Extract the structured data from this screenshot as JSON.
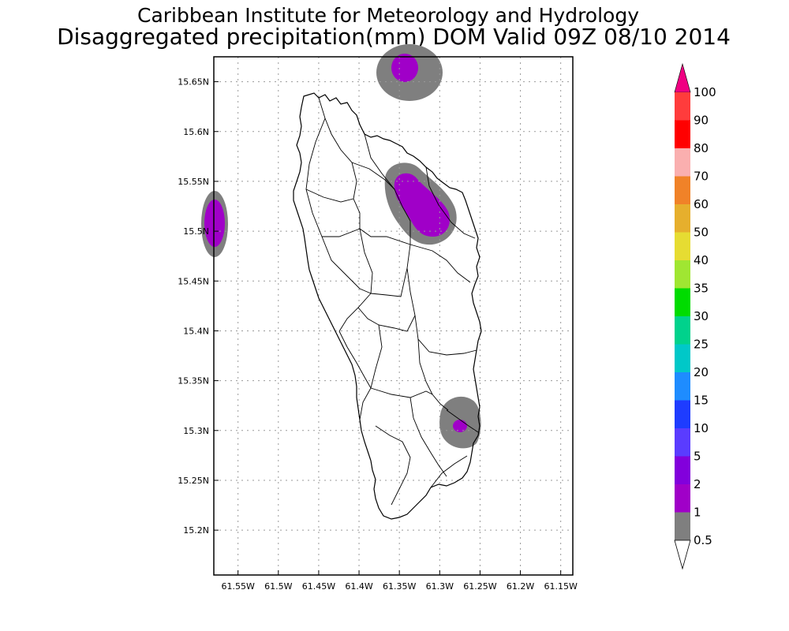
{
  "header": {
    "title": "Caribbean Institute for Meteorology and Hydrology",
    "subtitle": "Disaggregated precipitation(mm) DOM Valid 09Z 08/10 2014"
  },
  "map": {
    "lon_range": [
      -61.58,
      -61.135
    ],
    "lat_range": [
      15.155,
      15.675
    ],
    "lon_ticks": [
      {
        "value": -61.55,
        "label": "61.55W"
      },
      {
        "value": -61.5,
        "label": "61.5W"
      },
      {
        "value": -61.45,
        "label": "61.45W"
      },
      {
        "value": -61.4,
        "label": "61.4W"
      },
      {
        "value": -61.35,
        "label": "61.35W"
      },
      {
        "value": -61.3,
        "label": "61.3W"
      },
      {
        "value": -61.25,
        "label": "61.25W"
      },
      {
        "value": -61.2,
        "label": "61.2W"
      },
      {
        "value": -61.15,
        "label": "61.15W"
      }
    ],
    "lat_ticks": [
      {
        "value": 15.65,
        "label": "15.65N"
      },
      {
        "value": 15.6,
        "label": "15.6N"
      },
      {
        "value": 15.55,
        "label": "15.55N"
      },
      {
        "value": 15.5,
        "label": "15.5N"
      },
      {
        "value": 15.45,
        "label": "15.45N"
      },
      {
        "value": 15.4,
        "label": "15.4N"
      },
      {
        "value": 15.35,
        "label": "15.35N"
      },
      {
        "value": 15.3,
        "label": "15.3N"
      },
      {
        "value": 15.25,
        "label": "15.25N"
      },
      {
        "value": 15.2,
        "label": "15.2N"
      }
    ],
    "grid": true
  },
  "colorbar": {
    "levels": [
      "0.5",
      "1",
      "2",
      "5",
      "10",
      "15",
      "20",
      "25",
      "30",
      "35",
      "40",
      "50",
      "60",
      "70",
      "80",
      "90",
      "100"
    ],
    "colors": [
      "#7f7f7f",
      "#a000c8",
      "#8200dc",
      "#5a3cff",
      "#1e3cff",
      "#1e8cff",
      "#00c8c8",
      "#00d28c",
      "#00dc00",
      "#a0e632",
      "#e6dc32",
      "#e6af2d",
      "#f08228",
      "#faafaf",
      "#ff0000",
      "#ff3c3c",
      "#f00082"
    ],
    "below_color": "#ffffff"
  },
  "colors": {
    "gray_contour": "#7f7f7f",
    "purple_contour": "#a000c8"
  }
}
